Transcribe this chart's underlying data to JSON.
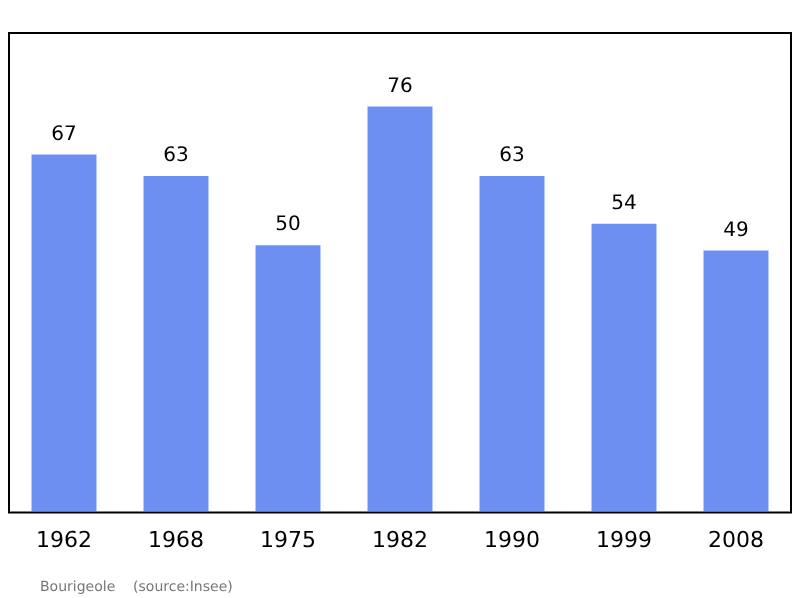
{
  "chart_data": {
    "type": "bar",
    "categories": [
      "1962",
      "1968",
      "1975",
      "1982",
      "1990",
      "1999",
      "2008"
    ],
    "values": [
      67,
      63,
      50,
      76,
      63,
      54,
      49
    ],
    "color": "#6d8ff2",
    "data_labels": true,
    "grid": false,
    "legend": false,
    "annotations": [
      "Bourigeole    (source:Insee)"
    ]
  }
}
